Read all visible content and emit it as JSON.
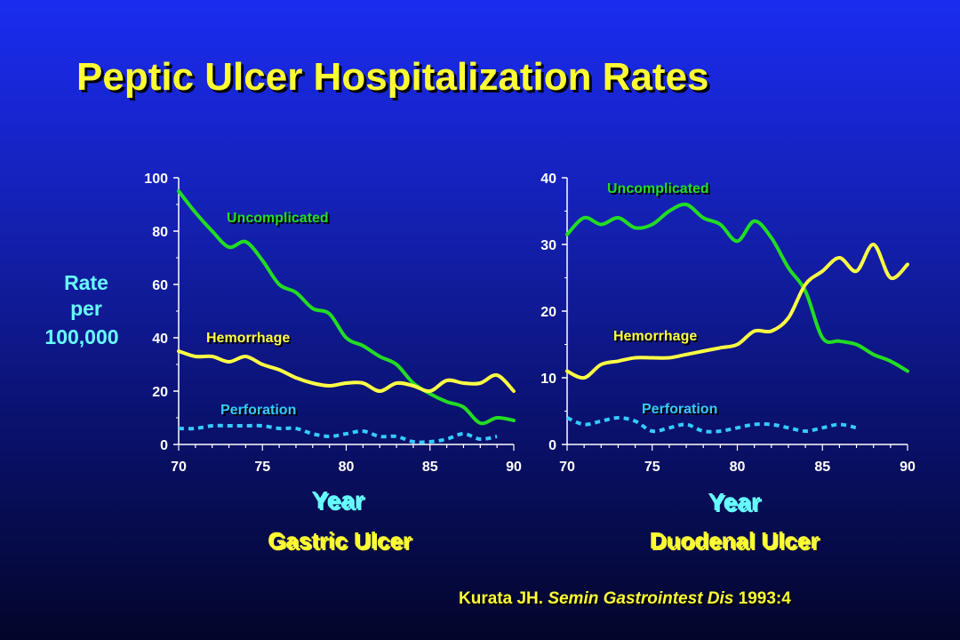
{
  "slide": {
    "title": "Peptic Ulcer Hospitalization Rates",
    "ylabel_lines": [
      "Rate",
      "per",
      "100,000"
    ],
    "citation": {
      "author": "Kurata JH. ",
      "journal": "Semin Gastrointest Dis",
      "year": " 1993:4"
    }
  },
  "colors": {
    "uncomplicated": "#22dd22",
    "hemorrhage": "#ffff44",
    "perforation": "#33ccff",
    "axis": "#ffffff",
    "title": "#ffff33",
    "label": "#66ffff"
  },
  "chart_data": [
    {
      "type": "line",
      "subtitle": "Gastric Ulcer",
      "xlabel": "Year",
      "ylabel": "Rate per 100,000",
      "xlim": [
        70,
        90
      ],
      "ylim": [
        0,
        100
      ],
      "xticks": [
        70,
        75,
        80,
        85,
        90
      ],
      "yticks": [
        0,
        20,
        40,
        60,
        80,
        100
      ],
      "grid": false,
      "series": [
        {
          "name": "Uncomplicated",
          "x": [
            70,
            71,
            72,
            73,
            74,
            75,
            76,
            77,
            78,
            79,
            80,
            81,
            82,
            83,
            84,
            85,
            86,
            87,
            88,
            89,
            90
          ],
          "values": [
            95,
            87,
            80,
            74,
            76,
            69,
            60,
            57,
            51,
            49,
            40,
            37,
            33,
            30,
            23,
            19,
            16,
            14,
            8,
            10,
            9
          ]
        },
        {
          "name": "Hemorrhage",
          "x": [
            70,
            71,
            72,
            73,
            74,
            75,
            76,
            77,
            78,
            79,
            80,
            81,
            82,
            83,
            84,
            85,
            86,
            87,
            88,
            89,
            90
          ],
          "values": [
            35,
            33,
            33,
            31,
            33,
            30,
            28,
            25,
            23,
            22,
            23,
            23,
            20,
            23,
            22,
            20,
            24,
            23,
            23,
            26,
            20
          ]
        },
        {
          "name": "Perforation",
          "x": [
            70,
            71,
            72,
            73,
            74,
            75,
            76,
            77,
            78,
            79,
            80,
            81,
            82,
            83,
            84,
            85,
            86,
            87,
            88,
            89
          ],
          "values": [
            6,
            6,
            7,
            7,
            7,
            7,
            6,
            6,
            4,
            3,
            4,
            5,
            3,
            3,
            1,
            1,
            2,
            4,
            2,
            3
          ]
        }
      ]
    },
    {
      "type": "line",
      "subtitle": "Duodenal Ulcer",
      "xlabel": "Year",
      "ylabel": "Rate per 100,000",
      "xlim": [
        70,
        90
      ],
      "ylim": [
        0,
        40
      ],
      "xticks": [
        70,
        75,
        80,
        85,
        90
      ],
      "yticks": [
        0,
        10,
        20,
        30,
        40
      ],
      "grid": false,
      "series": [
        {
          "name": "Uncomplicated",
          "x": [
            70,
            71,
            72,
            73,
            74,
            75,
            76,
            77,
            78,
            79,
            80,
            81,
            82,
            83,
            84,
            85,
            86,
            87,
            88,
            89,
            90
          ],
          "values": [
            31.5,
            34,
            33,
            34,
            32.5,
            33,
            35,
            36,
            34,
            33,
            30.5,
            33.5,
            31,
            26.5,
            23,
            16,
            15.5,
            15,
            13.5,
            12.5,
            11
          ]
        },
        {
          "name": "Hemorrhage",
          "x": [
            70,
            71,
            72,
            73,
            74,
            75,
            76,
            77,
            78,
            79,
            80,
            81,
            82,
            83,
            84,
            85,
            86,
            87,
            88,
            89,
            90
          ],
          "values": [
            11,
            10,
            12,
            12.5,
            13,
            13,
            13,
            13.5,
            14,
            14.5,
            15,
            17,
            17,
            19,
            24,
            26,
            28,
            26,
            30,
            25,
            27
          ]
        },
        {
          "name": "Perforation",
          "x": [
            70,
            71,
            72,
            73,
            74,
            75,
            76,
            77,
            78,
            79,
            80,
            81,
            82,
            83,
            84,
            85,
            86,
            87
          ],
          "values": [
            4,
            3,
            3.5,
            4,
            3.5,
            2,
            2.5,
            3,
            2,
            2,
            2.5,
            3,
            3,
            2.5,
            2,
            2.5,
            3,
            2.5
          ]
        }
      ]
    }
  ]
}
